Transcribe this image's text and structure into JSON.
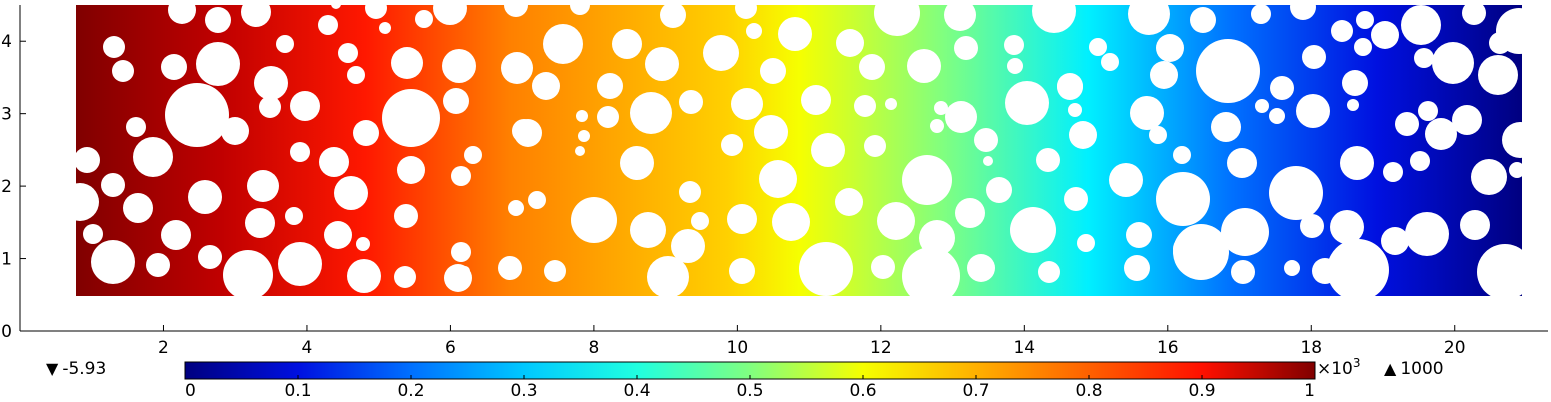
{
  "chart_data": {
    "type": "heatmap",
    "title": "",
    "xlabel": "",
    "ylabel": "",
    "xlim": [
      0,
      21.3
    ],
    "ylim": [
      0,
      4.5
    ],
    "x_ticks": [
      "2",
      "4",
      "6",
      "8",
      "10",
      "12",
      "14",
      "16",
      "18",
      "20"
    ],
    "y_ticks": [
      "0",
      "1",
      "2",
      "3",
      "4"
    ],
    "domain_extent": {
      "x": [
        1,
        21
      ],
      "y": [
        0.5,
        4.5
      ]
    },
    "field": "linear gradient along x, max at left edge, min at right edge",
    "colormap": "rainbow (dark blue to dark red)",
    "colorbar": {
      "ticks": [
        "0",
        "0.1",
        "0.2",
        "0.3",
        "0.4",
        "0.5",
        "0.6",
        "0.7",
        "0.8",
        "0.9",
        "1"
      ],
      "multiplier": "×10",
      "exponent": "3",
      "range": [
        0,
        1000
      ]
    },
    "min_value": "-5.93",
    "max_value": "1000"
  }
}
